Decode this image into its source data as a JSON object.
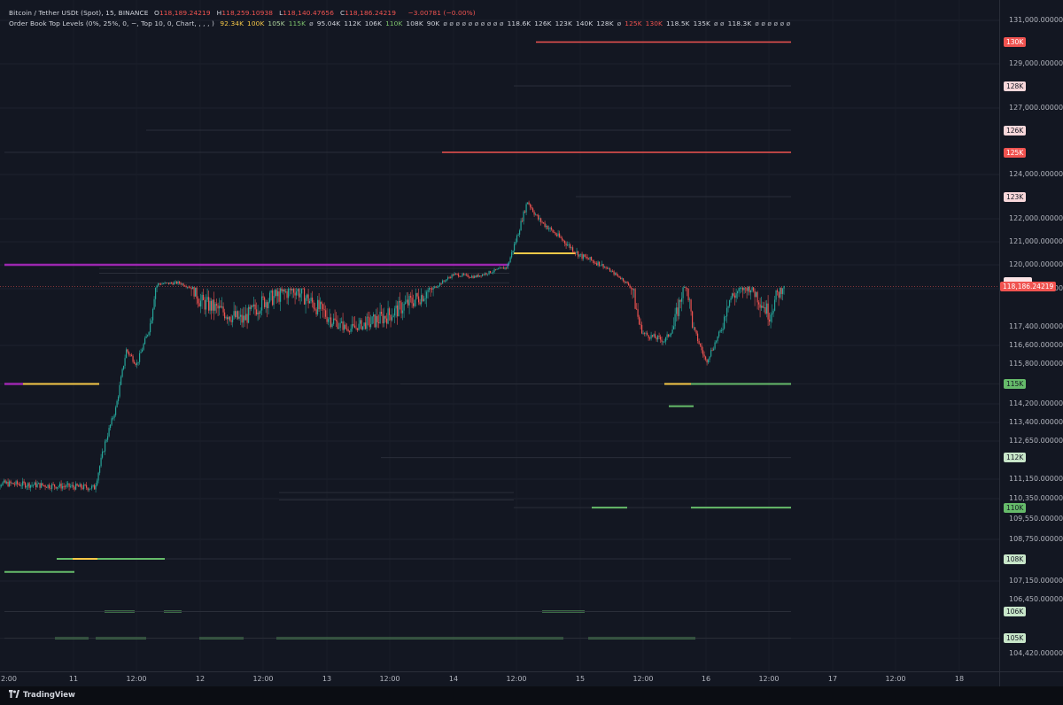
{
  "header": {
    "symbol": "Bitcoin / Tether USDt (Spot), 15, BINANCE",
    "ohlc": [
      {
        "k": "O",
        "v": "118,189.24219"
      },
      {
        "k": "H",
        "v": "118,259.10938"
      },
      {
        "k": "L",
        "v": "118,140.47656"
      },
      {
        "k": "C",
        "v": "118,186.24219"
      }
    ],
    "change": "−3.00781 (−0.00%)",
    "indicator": "Order Book Top Levels (0%, 25%, 0, −, Top 10, 0, Chart, , , , )",
    "indicator_values": [
      {
        "t": "92.34K",
        "c": "#f7c948"
      },
      {
        "t": "100K",
        "c": "#f7c948"
      },
      {
        "t": "105K",
        "c": "#b2d8a0"
      },
      {
        "t": "115K",
        "c": "#7fc66e"
      },
      {
        "t": "ø",
        "c": "#b2b5be"
      },
      {
        "t": "95.04K",
        "c": "#d1d4dc"
      },
      {
        "t": "112K",
        "c": "#d1d4dc"
      },
      {
        "t": "106K",
        "c": "#d1d4dc"
      },
      {
        "t": "110K",
        "c": "#7fc66e"
      },
      {
        "t": "108K",
        "c": "#d1d4dc"
      },
      {
        "t": "90K",
        "c": "#d1d4dc"
      },
      {
        "t": "ø ø ø ø ø ø ø ø ø ø",
        "c": "#b2b5be"
      },
      {
        "t": "118.6K",
        "c": "#d1d4dc"
      },
      {
        "t": "126K",
        "c": "#d1d4dc"
      },
      {
        "t": "123K",
        "c": "#d1d4dc"
      },
      {
        "t": "140K",
        "c": "#d1d4dc"
      },
      {
        "t": "128K",
        "c": "#d1d4dc"
      },
      {
        "t": "ø",
        "c": "#b2b5be"
      },
      {
        "t": "125K",
        "c": "#f05350"
      },
      {
        "t": "130K",
        "c": "#f05350"
      },
      {
        "t": "118.5K",
        "c": "#d1d4dc"
      },
      {
        "t": "135K",
        "c": "#d1d4dc"
      },
      {
        "t": "ø ø",
        "c": "#b2b5be"
      },
      {
        "t": "118.3K",
        "c": "#d1d4dc"
      },
      {
        "t": "ø ø ø ø ø ø",
        "c": "#b2b5be"
      }
    ]
  },
  "price_axis": {
    "labels": [
      "131,000.00000",
      "129,000.00000",
      "127,000.00000",
      "124,000.00000",
      "122,000.00000",
      "121,000.00000",
      "120,000.00000",
      "118,000.00000",
      "117,400.00000",
      "116,600.00000",
      "115,800.00000",
      "114,200.00000",
      "113,400.00000",
      "112,650.00000",
      "111,150.00000",
      "110,350.00000",
      "109,550.00000",
      "108,750.00000",
      "107,150.00000",
      "106,450.00000",
      "104,420.00000"
    ],
    "level_tags": [
      {
        "text": "130K",
        "price": 130000,
        "bg": "#f05350",
        "fg": "#ffffff"
      },
      {
        "text": "128K",
        "price": 128000,
        "bg": "#f8d7da",
        "fg": "#131722"
      },
      {
        "text": "126K",
        "price": 126000,
        "bg": "#f8d7da",
        "fg": "#131722"
      },
      {
        "text": "125K",
        "price": 125000,
        "bg": "#f05350",
        "fg": "#ffffff"
      },
      {
        "text": "123K",
        "price": 123000,
        "bg": "#f8d7da",
        "fg": "#131722"
      },
      {
        "text": "118.6K",
        "price": 118560,
        "bg": "#fce4e6",
        "fg": "#131722"
      },
      {
        "text": "118.5K",
        "price": 118470,
        "bg": "#fce4e6",
        "fg": "#131722"
      },
      {
        "text": "118.3K",
        "price": 118320,
        "bg": "#fce4e6",
        "fg": "#131722"
      },
      {
        "text": "115K",
        "price": 115000,
        "bg": "#66bb6a",
        "fg": "#131722"
      },
      {
        "text": "112K",
        "price": 112000,
        "bg": "#c8e6c9",
        "fg": "#131722"
      },
      {
        "text": "110K",
        "price": 110000,
        "bg": "#66bb6a",
        "fg": "#131722"
      },
      {
        "text": "108K",
        "price": 108000,
        "bg": "#c8e6c9",
        "fg": "#131722"
      },
      {
        "text": "106K",
        "price": 106000,
        "bg": "#c8e6c9",
        "fg": "#131722"
      },
      {
        "text": "105K",
        "price": 105000,
        "bg": "#c8e6c9",
        "fg": "#131722"
      }
    ],
    "last_price": "118,186.24219",
    "last_price_color": "#f05350"
  },
  "time_axis": [
    "2:00",
    "11",
    "12:00",
    "12",
    "12:00",
    "13",
    "12:00",
    "14",
    "12:00",
    "15",
    "12:00",
    "16",
    "12:00",
    "17",
    "12:00",
    "18"
  ],
  "footer": {
    "brand": "TradingView"
  },
  "colors": {
    "up": "#26a69a",
    "down": "#ef5350",
    "bid": "#66bb6a",
    "ask": "#f05350",
    "mid": "#f7c948",
    "magenta": "#9c27b0",
    "faint": "#434651"
  },
  "chart_data": {
    "type": "candlestick",
    "interval": "15",
    "price_range": [
      103800,
      131300
    ],
    "time_range": [
      "Aug 10 22:00",
      "Aug 18 06:00"
    ],
    "close_path": [
      {
        "t": "10 22:00",
        "p": 111000
      },
      {
        "t": "11 04:00",
        "p": 110800
      },
      {
        "t": "11 06:00",
        "p": 112600
      },
      {
        "t": "11 08:00",
        "p": 114000
      },
      {
        "t": "11 10:00",
        "p": 116400
      },
      {
        "t": "11 12:00",
        "p": 115800
      },
      {
        "t": "11 16:00",
        "p": 118400
      },
      {
        "t": "11 20:00",
        "p": 118500
      },
      {
        "t": "12 00:00",
        "p": 117800
      },
      {
        "t": "12 08:00",
        "p": 117500
      },
      {
        "t": "12 12:00",
        "p": 117800
      },
      {
        "t": "12 18:00",
        "p": 118000
      },
      {
        "t": "13 04:00",
        "p": 117300
      },
      {
        "t": "13 12:00",
        "p": 117600
      },
      {
        "t": "13 20:00",
        "p": 118000
      },
      {
        "t": "14 00:00",
        "p": 119200
      },
      {
        "t": "14 04:00",
        "p": 119000
      },
      {
        "t": "14 10:00",
        "p": 119800
      },
      {
        "t": "14 12:00",
        "p": 121200
      },
      {
        "t": "14 14:00",
        "p": 122800
      },
      {
        "t": "14 16:00",
        "p": 122000
      },
      {
        "t": "15 00:00",
        "p": 120400
      },
      {
        "t": "15 04:00",
        "p": 120000
      },
      {
        "t": "15 08:00",
        "p": 118800
      },
      {
        "t": "15 12:00",
        "p": 117100
      },
      {
        "t": "15 16:00",
        "p": 116800
      },
      {
        "t": "15 20:00",
        "p": 118200
      },
      {
        "t": "16 00:00",
        "p": 115900
      },
      {
        "t": "16 04:00",
        "p": 117800
      },
      {
        "t": "16 08:00",
        "p": 118100
      },
      {
        "t": "16 12:00",
        "p": 117600
      },
      {
        "t": "16 15:00",
        "p": 118186
      }
    ],
    "order_book_levels": [
      {
        "price": 130000,
        "side": "ask"
      },
      {
        "price": 128000,
        "side": "ask"
      },
      {
        "price": 126000,
        "side": "ask"
      },
      {
        "price": 125000,
        "side": "ask"
      },
      {
        "price": 123000,
        "side": "ask"
      },
      {
        "price": 120000,
        "side": "magenta"
      },
      {
        "price": 115000,
        "side": "bid"
      },
      {
        "price": 112000,
        "side": "bid"
      },
      {
        "price": 110000,
        "side": "bid"
      },
      {
        "price": 108000,
        "side": "bid"
      },
      {
        "price": 106000,
        "side": "bid"
      },
      {
        "price": 105000,
        "side": "bid"
      }
    ]
  }
}
